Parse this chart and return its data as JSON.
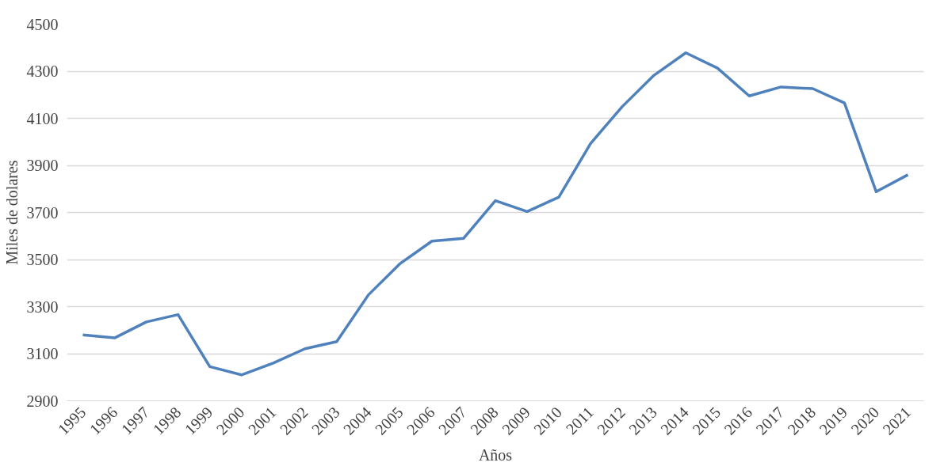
{
  "chart_data": {
    "type": "line",
    "xlabel": "Años",
    "ylabel": "Miles de dolares",
    "categories": [
      "1995",
      "1996",
      "1997",
      "1998",
      "1999",
      "2000",
      "2001",
      "2002",
      "2003",
      "2004",
      "2005",
      "2006",
      "2007",
      "2008",
      "2009",
      "2010",
      "2011",
      "2012",
      "2013",
      "2014",
      "2015",
      "2016",
      "2017",
      "2018",
      "2019",
      "2020",
      "2021"
    ],
    "series": [
      {
        "color": "#4f81bd",
        "values": [
          3180,
          3167,
          3235,
          3266,
          3045,
          3010,
          3060,
          3121,
          3151,
          3350,
          3483,
          3578,
          3590,
          3750,
          3704,
          3765,
          3993,
          4150,
          4283,
          4378,
          4313,
          4195,
          4233,
          4226,
          4165,
          3788,
          3860
        ]
      }
    ],
    "ylim": [
      2900,
      4500
    ],
    "yticks": [
      2900,
      3100,
      3300,
      3500,
      3700,
      3900,
      4100,
      4300,
      4500
    ],
    "grid": "y",
    "marker": "none",
    "line_style": "solid"
  }
}
